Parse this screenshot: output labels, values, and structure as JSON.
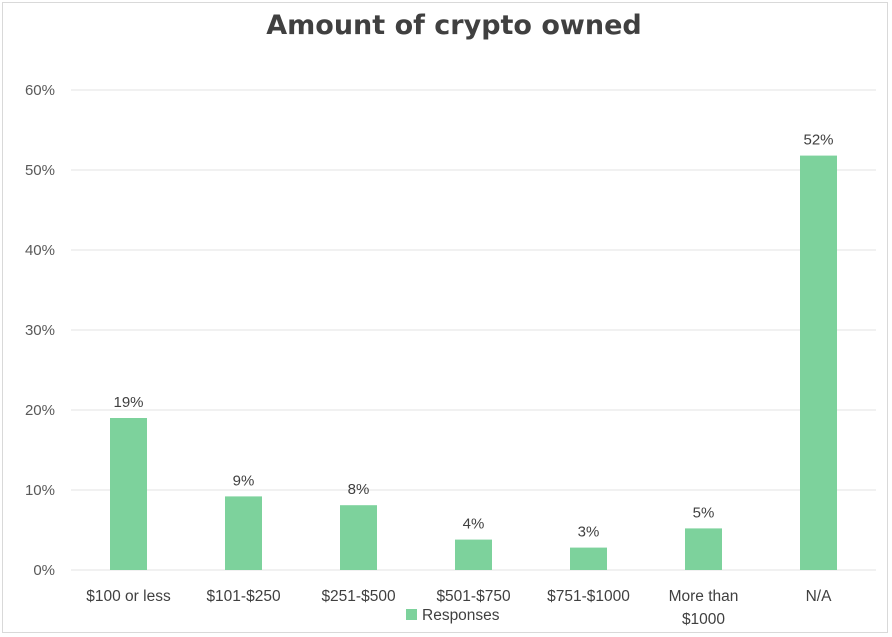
{
  "chart_data": {
    "type": "bar",
    "title": "Amount of crypto owned",
    "categories": [
      "$100 or less",
      "$101-$250",
      "$251-$500",
      "$501-$750",
      "$751-$1000",
      "More than $1000",
      "N/A"
    ],
    "category_lines": [
      [
        "$100 or less"
      ],
      [
        "$101-$250"
      ],
      [
        "$251-$500"
      ],
      [
        "$501-$750"
      ],
      [
        "$751-$1000"
      ],
      [
        "More than",
        "$1000"
      ],
      [
        "N/A"
      ]
    ],
    "series": [
      {
        "name": "Responses",
        "values": [
          19,
          9.2,
          8.1,
          3.8,
          2.8,
          5.2,
          51.8
        ],
        "labels": [
          "19%",
          "9%",
          "8%",
          "4%",
          "3%",
          "5%",
          "52%"
        ],
        "color": "#7dd29c"
      }
    ],
    "ylim": [
      0,
      60
    ],
    "yticks": [
      0,
      10,
      20,
      30,
      40,
      50,
      60
    ],
    "ytick_labels": [
      "0%",
      "10%",
      "20%",
      "30%",
      "40%",
      "50%",
      "60%"
    ],
    "grid": true,
    "legend_position": "bottom",
    "gridline_color": "#e3e3e3"
  }
}
